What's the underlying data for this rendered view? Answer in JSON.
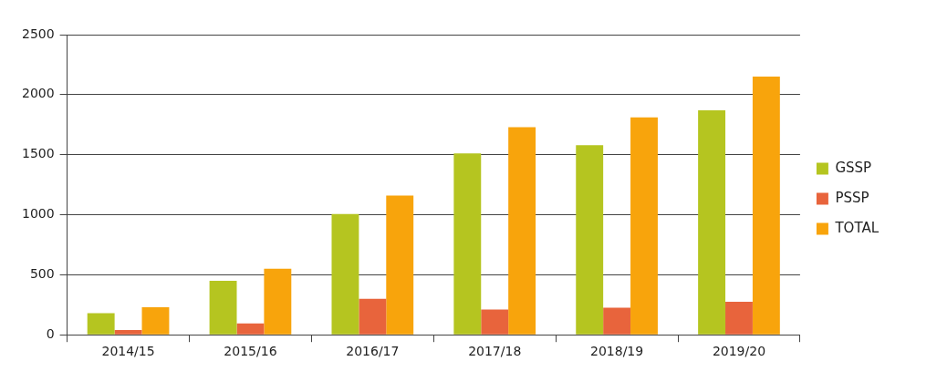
{
  "chart_data": {
    "type": "bar",
    "categories": [
      "2014/15",
      "2015/16",
      "2016/17",
      "2017/18",
      "2018/19",
      "2019/20"
    ],
    "series": [
      {
        "name": "GSSP",
        "color": "#b5c520",
        "values": [
          180,
          450,
          1005,
          1510,
          1580,
          1870
        ]
      },
      {
        "name": "PSSP",
        "color": "#e8643c",
        "values": [
          40,
          95,
          300,
          210,
          225,
          275
        ]
      },
      {
        "name": "TOTAL",
        "color": "#f8a40c",
        "values": [
          230,
          550,
          1160,
          1730,
          1810,
          2150
        ]
      }
    ],
    "ylim": [
      0,
      2500
    ],
    "yticks": [
      0,
      500,
      1000,
      1500,
      2000,
      2500
    ],
    "grid": "y",
    "legend": "right"
  }
}
